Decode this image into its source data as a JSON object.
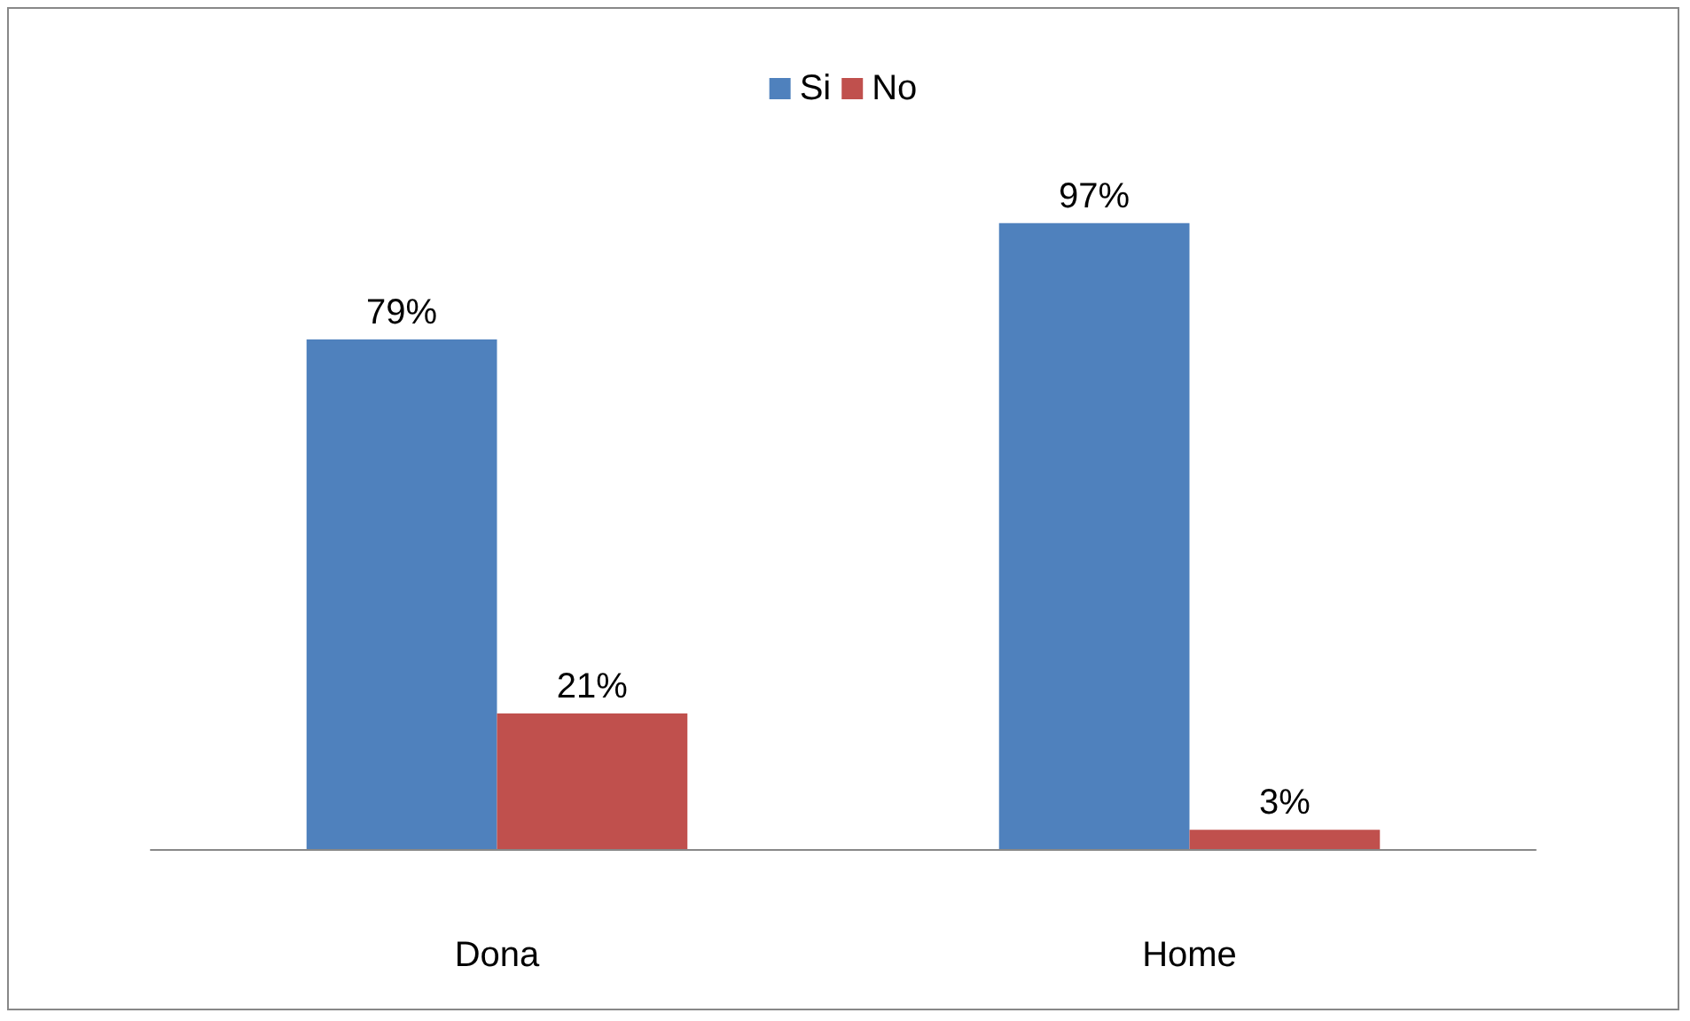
{
  "chart_data": {
    "type": "bar",
    "categories": [
      "Dona",
      "Home"
    ],
    "series": [
      {
        "name": "Si",
        "color": "#4f81bd",
        "values": [
          79,
          97
        ],
        "value_labels": [
          "79%",
          "97%"
        ]
      },
      {
        "name": "No",
        "color": "#c0504d",
        "values": [
          21,
          3
        ],
        "value_labels": [
          "21%",
          "3%"
        ]
      }
    ],
    "legend": "top",
    "grid": false,
    "tick_labels": "x"
  }
}
